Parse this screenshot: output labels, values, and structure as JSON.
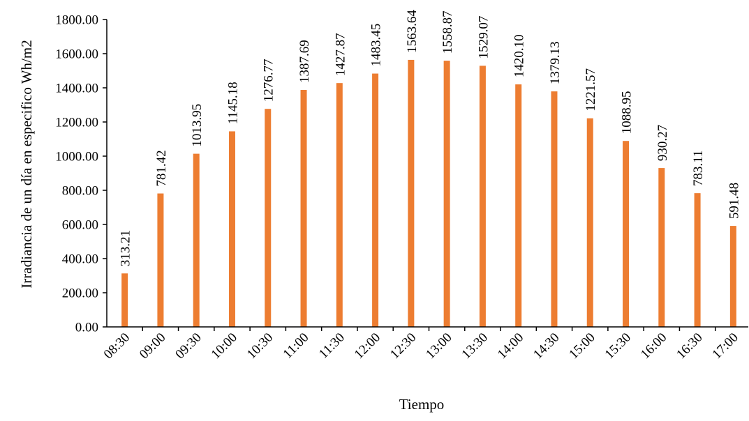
{
  "chart_data": {
    "type": "bar",
    "xlabel": "Tiempo",
    "ylabel": "Irradiancia de un día en especifico Wh/m2",
    "categories": [
      "08:30",
      "09:00",
      "09:30",
      "10:00",
      "10:30",
      "11:00",
      "11:30",
      "12:00",
      "12:30",
      "13:00",
      "13:30",
      "14:00",
      "14:30",
      "15:00",
      "15:30",
      "16:00",
      "16:30",
      "17:00"
    ],
    "series": [
      {
        "values": [
          313.21,
          781.42,
          1013.95,
          1145.18,
          1276.77,
          1387.69,
          1427.87,
          1483.45,
          1563.64,
          1558.87,
          1529.07,
          1420.1,
          1379.13,
          1221.57,
          1088.95,
          930.27,
          783.11,
          591.48
        ],
        "labels": [
          "313.21",
          "781.42",
          "1013.95",
          "1145.18",
          "1276.77",
          "1387.69",
          "1427.87",
          "1483.45",
          "1563.64",
          "1558.87",
          "1529.07",
          "1420.10",
          "1379.13",
          "1221.57",
          "1088.95",
          "930.27",
          "783.11",
          "591.48"
        ],
        "color": "#ED7D31"
      }
    ],
    "ylim": [
      0,
      1800
    ],
    "yticks": [
      0,
      200,
      400,
      600,
      800,
      1000,
      1200,
      1400,
      1600,
      1800
    ],
    "ytick_labels": [
      "0.00",
      "200.00",
      "400.00",
      "600.00",
      "800.00",
      "1000.00",
      "1200.00",
      "1400.00",
      "1600.00",
      "1800.00"
    ],
    "grid": false,
    "legend": "none",
    "axis_color": "#000000"
  }
}
